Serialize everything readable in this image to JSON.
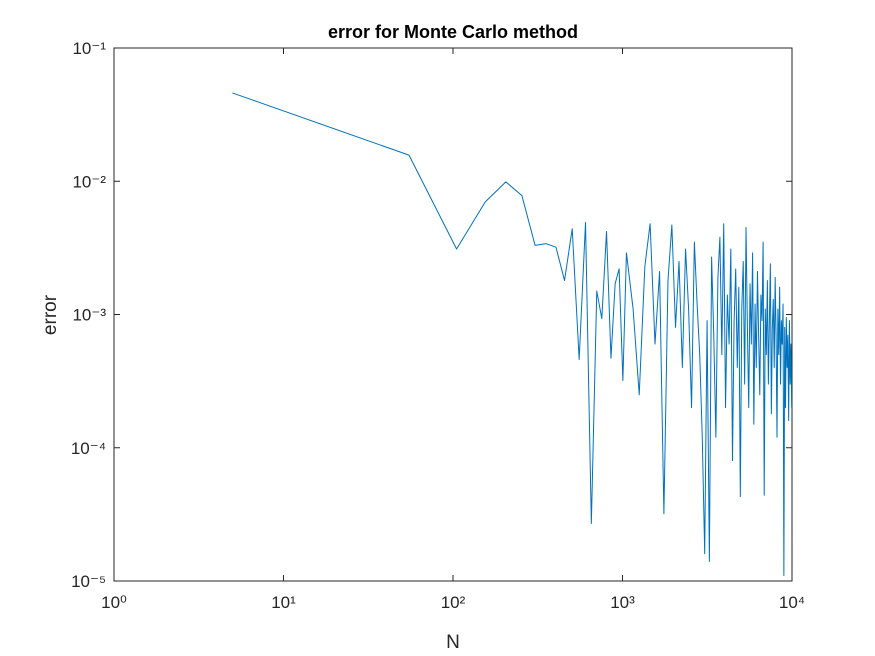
{
  "chart_data": {
    "type": "line",
    "title": "error for Monte Carlo method",
    "xlabel": "N",
    "ylabel": "error",
    "xscale": "log",
    "yscale": "log",
    "grid": false,
    "xlim": [
      1,
      10000
    ],
    "xticks": [
      {
        "value": 1,
        "label": "10⁰"
      },
      {
        "value": 10,
        "label": "10¹"
      },
      {
        "value": 100,
        "label": "10²"
      },
      {
        "value": 1000,
        "label": "10³"
      },
      {
        "value": 10000,
        "label": "10⁴"
      }
    ],
    "ylim": [
      1e-05,
      0.1
    ],
    "yticks": [
      {
        "value": 1e-05,
        "label": "10⁻⁵"
      },
      {
        "value": 0.0001,
        "label": "10⁻⁴"
      },
      {
        "value": 0.001,
        "label": "10⁻³"
      },
      {
        "value": 0.01,
        "label": "10⁻²"
      },
      {
        "value": 0.1,
        "label": "10⁻¹"
      }
    ],
    "x": [
      5,
      55,
      105,
      155,
      205,
      255,
      305,
      355,
      405,
      455,
      505,
      555,
      605,
      655,
      705,
      755,
      805,
      855,
      905,
      955,
      1005,
      1055,
      1155,
      1255,
      1355,
      1455,
      1555,
      1655,
      1755,
      1855,
      1955,
      2055,
      2155,
      2255,
      2355,
      2455,
      2555,
      2655,
      2755,
      2855,
      2955,
      3055,
      3155,
      3255,
      3355,
      3455,
      3555,
      3655,
      3755,
      3855,
      3955,
      4055,
      4155,
      4255,
      4355,
      4455,
      4555,
      4655,
      4755,
      4855,
      4955,
      5055,
      5155,
      5255,
      5355,
      5455,
      5555,
      5655,
      5755,
      5855,
      5955,
      6055,
      6155,
      6255,
      6355,
      6455,
      6555,
      6655,
      6755,
      6855,
      6955,
      7055,
      7155,
      7255,
      7355,
      7455,
      7555,
      7655,
      7755,
      7855,
      7955,
      8055,
      8155,
      8255,
      8355,
      8455,
      8555,
      8655,
      8755,
      8855,
      8955,
      9055,
      9155,
      9255,
      9355,
      9455,
      9555,
      9655,
      9755,
      9855,
      9955
    ],
    "series": [
      {
        "name": "error",
        "color": "#0072bd",
        "values": [
          0.046,
          0.0157,
          0.0031,
          0.007,
          0.0099,
          0.0078,
          0.0033,
          0.0034,
          0.0032,
          0.0018,
          0.0044,
          0.00046,
          0.0049,
          2.7e-05,
          0.0015,
          0.00093,
          0.0042,
          0.00047,
          0.0017,
          0.0022,
          0.00032,
          0.0029,
          0.0011,
          0.00025,
          0.0023,
          0.0048,
          0.0006,
          0.0021,
          3.2e-05,
          0.0018,
          0.0047,
          0.0008,
          0.0025,
          0.0004,
          0.0031,
          0.0011,
          0.0002,
          0.0035,
          0.0012,
          0.0005,
          0.00012,
          1.6e-05,
          0.0009,
          1.4e-05,
          0.0027,
          0.0007,
          0.00012,
          0.0019,
          0.0038,
          0.0005,
          0.0048,
          0.0002,
          0.0014,
          0.0006,
          0.0031,
          8e-05,
          0.0009,
          0.0022,
          0.0004,
          0.0016,
          4.3e-05,
          0.0011,
          0.0025,
          0.0003,
          0.0045,
          0.0008,
          0.0002,
          0.0017,
          0.0006,
          0.0029,
          0.00015,
          0.0012,
          0.0004,
          0.0021,
          0.0007,
          0.00025,
          0.0014,
          0.0009,
          0.0035,
          4.4e-05,
          0.0011,
          0.0005,
          0.0018,
          0.0003,
          0.0009,
          0.0024,
          0.00018,
          0.0008,
          0.0013,
          0.0004,
          0.0019,
          0.0007,
          0.00012,
          0.0011,
          0.0005,
          0.0016,
          0.0003,
          0.0009,
          0.0006,
          0.0012,
          1.1e-05,
          0.0008,
          0.0002,
          0.00095,
          0.0004,
          0.0007,
          0.00016,
          0.0009,
          0.0003,
          0.0006,
          0.0002
        ]
      }
    ]
  }
}
